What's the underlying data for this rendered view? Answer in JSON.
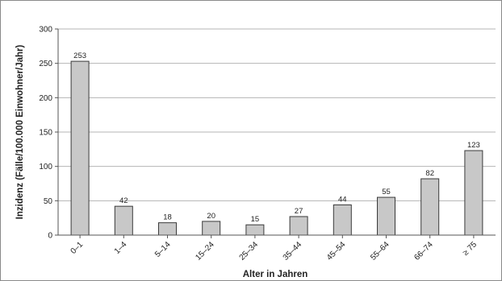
{
  "chart_data": {
    "type": "bar",
    "title": "",
    "xlabel": "Alter in Jahren",
    "ylabel": "Inzidenz (Fälle/100.000 Einwohner/Jahr)",
    "categories": [
      "0–1",
      "1–4",
      "5–14",
      "15–24",
      "25–34",
      "35–44",
      "45–54",
      "55–64",
      "66–74",
      "≥ 75"
    ],
    "values": [
      253,
      42,
      18,
      20,
      15,
      27,
      44,
      55,
      82,
      123
    ],
    "data_labels": [
      "253",
      "42",
      "18",
      "20",
      "15",
      "27",
      "44",
      "55",
      "82",
      "123"
    ],
    "ylim": [
      0,
      300
    ],
    "yticks": [
      0,
      50,
      100,
      150,
      200,
      250,
      300
    ],
    "grid": true,
    "legend": "none",
    "colors": {
      "bar_fill": "#c8c8c8",
      "bar_stroke": "#3a3a3a",
      "grid": "#b5b5b5",
      "axis": "#555555"
    }
  }
}
